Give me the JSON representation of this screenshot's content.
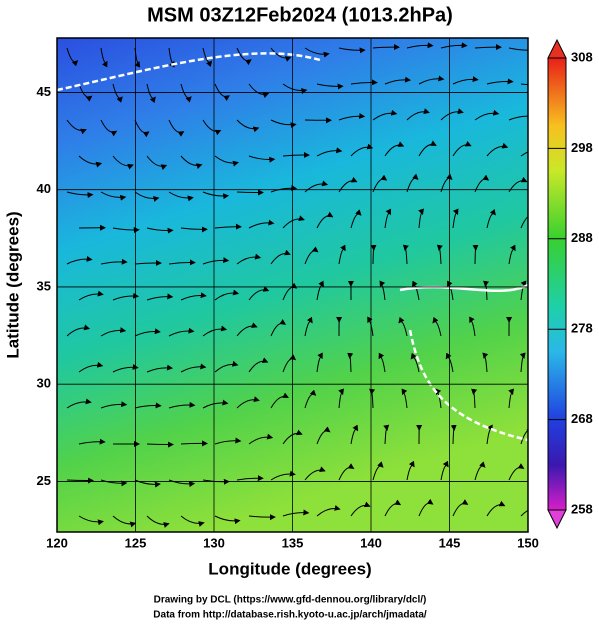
{
  "chart_data": {
    "type": "map",
    "title": "MSM 03Z12Feb2024 (1013.2hPa)",
    "xlabel": "Longitude (degrees)",
    "ylabel": "Latitude  (degrees)",
    "xlim": [
      120,
      150
    ],
    "ylim": [
      22.4,
      47.8
    ],
    "xticks": [
      120,
      125,
      130,
      135,
      140,
      145,
      150
    ],
    "yticks": [
      25,
      30,
      35,
      40,
      45
    ],
    "grid": true,
    "colorbar": {
      "lim": [
        258,
        308
      ],
      "ticks": [
        258,
        268,
        278,
        288,
        298,
        308
      ]
    },
    "footer": [
      "Drawing by DCL (https://www.gfd-dennou.org/library/dcl/)",
      "Data from http://database.rish.kyoto-u.ac.jp/arch/jmadata/"
    ]
  }
}
